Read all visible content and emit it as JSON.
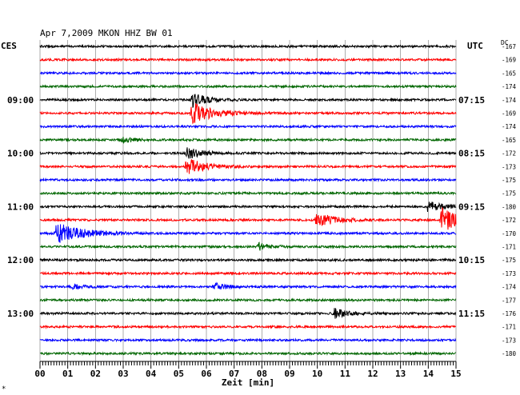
{
  "header": {
    "title": "Apr 7,2009   MKON HHZ BW 01",
    "left_label": "CES",
    "right_label": "UTC",
    "dc_label": "DC"
  },
  "chart_data": {
    "type": "line",
    "title": "Apr 7,2009   MKON HHZ BW 01",
    "xlabel": "Zeit [min]",
    "xlim": [
      0,
      15
    ],
    "x_ticks": [
      "00",
      "01",
      "02",
      "03",
      "04",
      "05",
      "06",
      "07",
      "08",
      "09",
      "10",
      "11",
      "12",
      "13",
      "14",
      "15"
    ],
    "trace_colors": [
      "#000000",
      "#ff0000",
      "#0000ff",
      "#006600"
    ],
    "left_hour_labels": [
      {
        "trace": 4,
        "label": "09:00"
      },
      {
        "trace": 8,
        "label": "10:00"
      },
      {
        "trace": 12,
        "label": "11:00"
      },
      {
        "trace": 16,
        "label": "12:00"
      },
      {
        "trace": 20,
        "label": "13:00"
      }
    ],
    "right_hour_labels": [
      {
        "trace": 4,
        "label": "07:15"
      },
      {
        "trace": 8,
        "label": "08:15"
      },
      {
        "trace": 12,
        "label": "09:15"
      },
      {
        "trace": 16,
        "label": "10:15"
      },
      {
        "trace": 20,
        "label": "11:15"
      }
    ],
    "dc_offsets": [
      -167,
      -169,
      -165,
      -174,
      -174,
      -169,
      -174,
      -165,
      -172,
      -173,
      -175,
      -175,
      -180,
      -172,
      -170,
      -171,
      -175,
      -173,
      -174,
      -177,
      -176,
      -171,
      -173,
      -180
    ],
    "events": [
      {
        "trace": 4,
        "minute": 5.5,
        "amp": 1.4
      },
      {
        "trace": 5,
        "minute": 5.5,
        "amp": 2.2
      },
      {
        "trace": 7,
        "minute": 3.0,
        "amp": 0.6
      },
      {
        "trace": 8,
        "minute": 5.3,
        "amp": 1.2
      },
      {
        "trace": 9,
        "minute": 5.3,
        "amp": 1.8
      },
      {
        "trace": 12,
        "minute": 14.0,
        "amp": 1.2
      },
      {
        "trace": 13,
        "minute": 10.0,
        "amp": 1.6
      },
      {
        "trace": 13,
        "minute": 14.5,
        "amp": 2.4
      },
      {
        "trace": 14,
        "minute": 0.6,
        "amp": 2.6
      },
      {
        "trace": 15,
        "minute": 7.9,
        "amp": 0.7
      },
      {
        "trace": 18,
        "minute": 6.3,
        "amp": 0.8
      },
      {
        "trace": 18,
        "minute": 1.2,
        "amp": 0.5
      },
      {
        "trace": 20,
        "minute": 10.6,
        "amp": 1.0
      }
    ],
    "footnote": "*"
  }
}
